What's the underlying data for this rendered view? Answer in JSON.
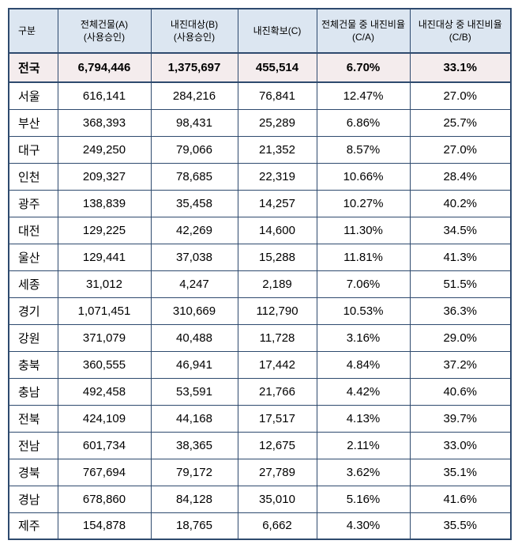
{
  "colors": {
    "border": "#2E4A6E",
    "header_bg": "#DCE6F1",
    "summary_bg": "#F4ECED"
  },
  "table": {
    "columns": [
      {
        "key": "region",
        "label": "구분",
        "sublabel": ""
      },
      {
        "key": "total",
        "label": "전체건물(A)",
        "sublabel": "(사용승인)"
      },
      {
        "key": "target",
        "label": "내진대상(B)",
        "sublabel": "(사용승인)"
      },
      {
        "key": "secured",
        "label": "내진확보(C)",
        "sublabel": ""
      },
      {
        "key": "ratio_total",
        "label": "전체건물 중 내진비율",
        "sublabel": "(C/A)"
      },
      {
        "key": "ratio_target",
        "label": "내진대상 중 내진비율",
        "sublabel": "(C/B)"
      }
    ],
    "summary_row": {
      "region": "전국",
      "total": "6,794,446",
      "target": "1,375,697",
      "secured": "455,514",
      "ratio_total": "6.70%",
      "ratio_target": "33.1%"
    },
    "rows": [
      {
        "region": "서울",
        "total": "616,141",
        "target": "284,216",
        "secured": "76,841",
        "ratio_total": "12.47%",
        "ratio_target": "27.0%"
      },
      {
        "region": "부산",
        "total": "368,393",
        "target": "98,431",
        "secured": "25,289",
        "ratio_total": "6.86%",
        "ratio_target": "25.7%"
      },
      {
        "region": "대구",
        "total": "249,250",
        "target": "79,066",
        "secured": "21,352",
        "ratio_total": "8.57%",
        "ratio_target": "27.0%"
      },
      {
        "region": "인천",
        "total": "209,327",
        "target": "78,685",
        "secured": "22,319",
        "ratio_total": "10.66%",
        "ratio_target": "28.4%"
      },
      {
        "region": "광주",
        "total": "138,839",
        "target": "35,458",
        "secured": "14,257",
        "ratio_total": "10.27%",
        "ratio_target": "40.2%"
      },
      {
        "region": "대전",
        "total": "129,225",
        "target": "42,269",
        "secured": "14,600",
        "ratio_total": "11.30%",
        "ratio_target": "34.5%"
      },
      {
        "region": "울산",
        "total": "129,441",
        "target": "37,038",
        "secured": "15,288",
        "ratio_total": "11.81%",
        "ratio_target": "41.3%"
      },
      {
        "region": "세종",
        "total": "31,012",
        "target": "4,247",
        "secured": "2,189",
        "ratio_total": "7.06%",
        "ratio_target": "51.5%"
      },
      {
        "region": "경기",
        "total": "1,071,451",
        "target": "310,669",
        "secured": "112,790",
        "ratio_total": "10.53%",
        "ratio_target": "36.3%"
      },
      {
        "region": "강원",
        "total": "371,079",
        "target": "40,488",
        "secured": "11,728",
        "ratio_total": "3.16%",
        "ratio_target": "29.0%"
      },
      {
        "region": "충북",
        "total": "360,555",
        "target": "46,941",
        "secured": "17,442",
        "ratio_total": "4.84%",
        "ratio_target": "37.2%"
      },
      {
        "region": "충남",
        "total": "492,458",
        "target": "53,591",
        "secured": "21,766",
        "ratio_total": "4.42%",
        "ratio_target": "40.6%"
      },
      {
        "region": "전북",
        "total": "424,109",
        "target": "44,168",
        "secured": "17,517",
        "ratio_total": "4.13%",
        "ratio_target": "39.7%"
      },
      {
        "region": "전남",
        "total": "601,734",
        "target": "38,365",
        "secured": "12,675",
        "ratio_total": "2.11%",
        "ratio_target": "33.0%"
      },
      {
        "region": "경북",
        "total": "767,694",
        "target": "79,172",
        "secured": "27,789",
        "ratio_total": "3.62%",
        "ratio_target": "35.1%"
      },
      {
        "region": "경남",
        "total": "678,860",
        "target": "84,128",
        "secured": "35,010",
        "ratio_total": "5.16%",
        "ratio_target": "41.6%"
      },
      {
        "region": "제주",
        "total": "154,878",
        "target": "18,765",
        "secured": "6,662",
        "ratio_total": "4.30%",
        "ratio_target": "35.5%"
      }
    ]
  }
}
